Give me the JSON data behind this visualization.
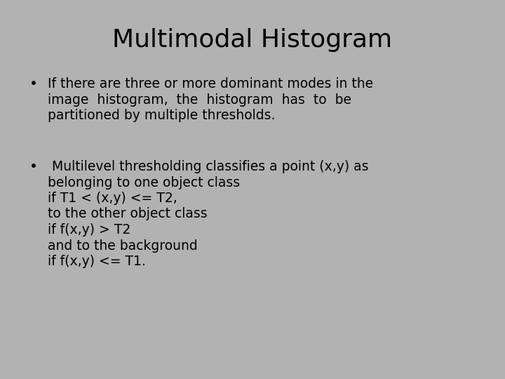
{
  "title": "Multimodal Histogram",
  "background_color": "#b2b2b2",
  "title_fontsize": 26,
  "title_fontweight": "normal",
  "title_color": "#000000",
  "text_fontsize": 13.5,
  "text_color": "#000000",
  "bullet1_lines": [
    "If there are three or more dominant modes in the",
    "image  histogram,  the  histogram  has  to  be",
    "partitioned by multiple thresholds."
  ],
  "bullet2_lines": [
    " Multilevel thresholding classifies a point (x,y) as",
    "belonging to one object class",
    "if T1 < (x,y) <= T2,",
    "to the other object class",
    "if f(x,y) > T2",
    "and to the background",
    "if f(x,y) <= T1."
  ]
}
